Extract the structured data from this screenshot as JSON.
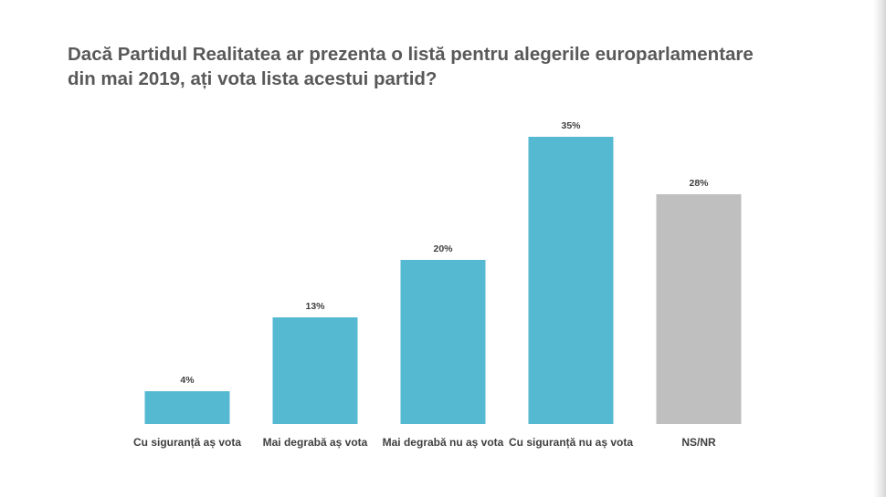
{
  "chart_data": {
    "type": "bar",
    "title": "Dacă Partidul Realitatea ar prezenta o listă pentru alegerile europarlamentare din mai 2019, ați vota lista acestui partid?",
    "xlabel": "",
    "ylabel": "",
    "categories": [
      "Cu siguranță aș vota",
      "Mai degrabă aș vota",
      "Mai degrabă nu aș vota",
      "Cu siguranță nu aș vota",
      "NS/NR"
    ],
    "values": [
      4,
      13,
      20,
      35,
      28
    ],
    "value_labels": [
      "4%",
      "13%",
      "20%",
      "35%",
      "28%"
    ],
    "unit": "%",
    "ylim": [
      0,
      35
    ],
    "grid": false,
    "legend": "none",
    "colors": [
      "#56b9d2",
      "#56b9d2",
      "#56b9d2",
      "#56b9d2",
      "#bfbfbf"
    ]
  }
}
